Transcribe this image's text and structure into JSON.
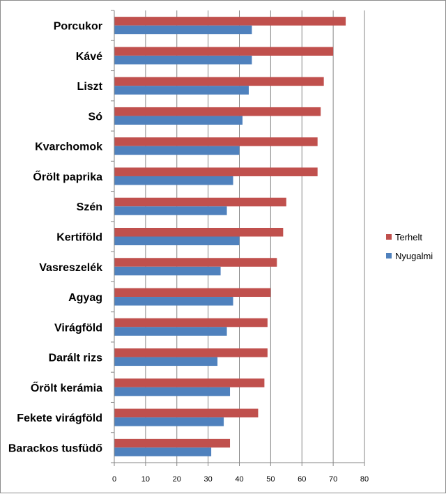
{
  "chart_data": {
    "type": "bar",
    "orientation": "horizontal",
    "categories": [
      "Porcukor",
      "Kávé",
      "Liszt",
      "Só",
      "Kvarchomok",
      "Őrölt paprika",
      "Szén",
      "Kertiföld",
      "Vasreszelék",
      "Agyag",
      "Virágföld",
      "Darált rizs",
      "Őrölt kerámia",
      "Fekete virágföld",
      "Barackos tusfüdő"
    ],
    "series": [
      {
        "name": "Terhelt",
        "color": "#c0504d",
        "values": [
          74,
          70,
          67,
          66,
          65,
          65,
          55,
          54,
          52,
          50,
          49,
          49,
          48,
          46,
          37
        ]
      },
      {
        "name": "Nyugalmi",
        "color": "#4f81bd",
        "values": [
          44,
          44,
          43,
          41,
          40,
          38,
          36,
          40,
          34,
          38,
          36,
          33,
          37,
          35,
          31
        ]
      }
    ],
    "xlim": [
      0,
      80
    ],
    "xticks": [
      "0",
      "10",
      "20",
      "30",
      "40",
      "50",
      "60",
      "70",
      "80"
    ],
    "grid": true,
    "legend_position": "right",
    "title": "",
    "xlabel": "",
    "ylabel": ""
  }
}
